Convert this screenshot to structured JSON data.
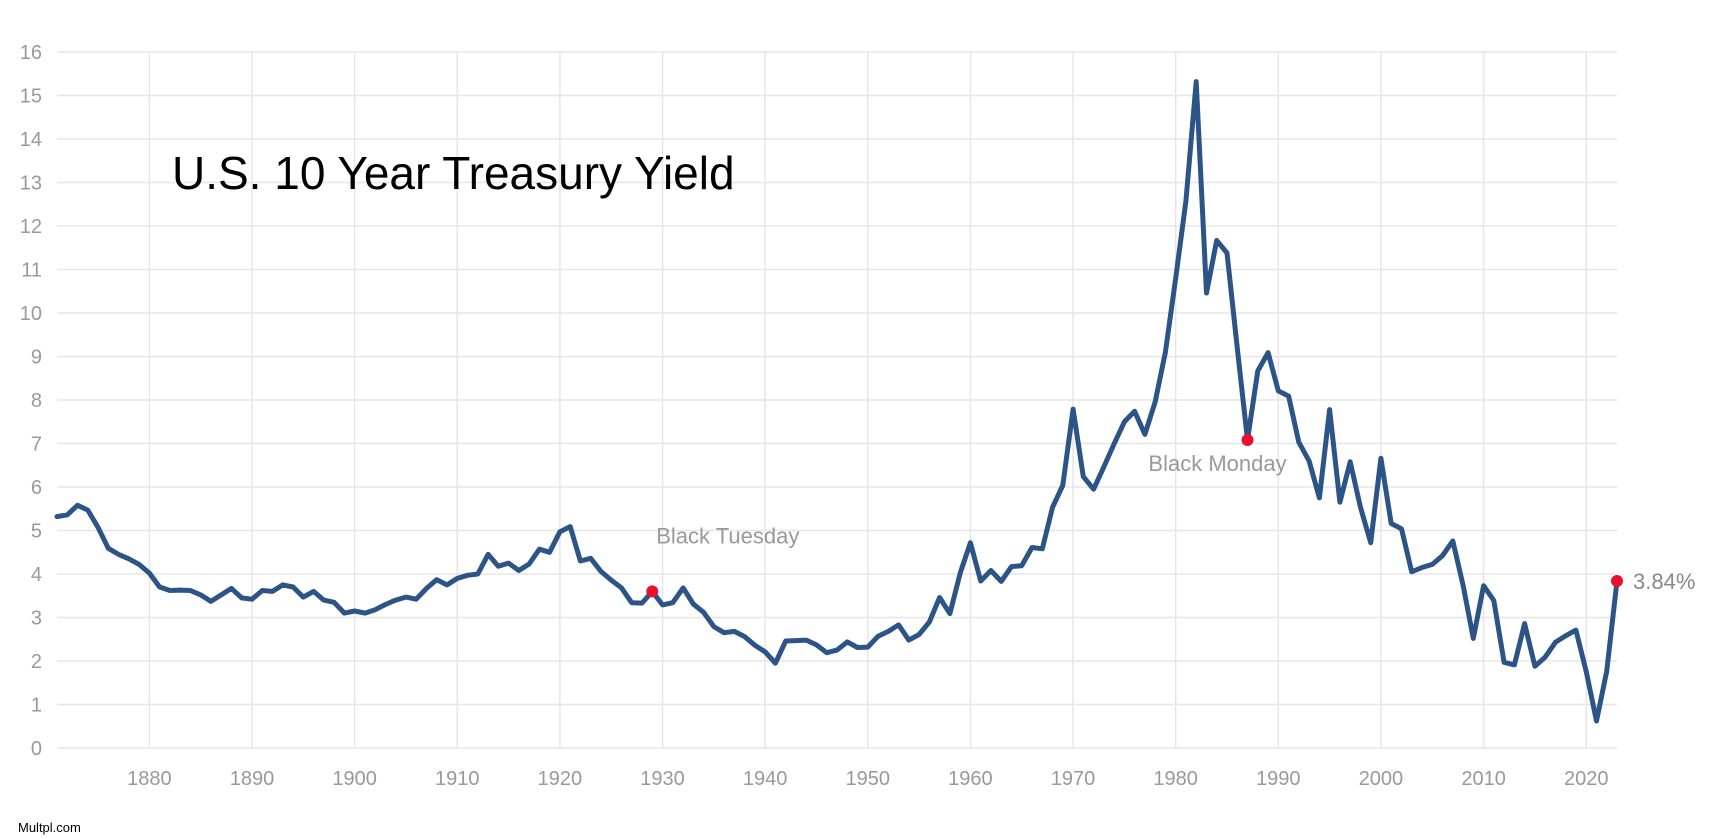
{
  "chart_data": {
    "type": "line",
    "title": "U.S. 10 Year Treasury Yield",
    "xlabel": "",
    "ylabel": "",
    "xlim": [
      1871,
      2023
    ],
    "ylim": [
      0,
      16
    ],
    "x_ticks": [
      1880,
      1890,
      1900,
      1910,
      1920,
      1930,
      1940,
      1950,
      1960,
      1970,
      1980,
      1990,
      2000,
      2010,
      2020
    ],
    "y_ticks": [
      0,
      1,
      2,
      3,
      4,
      5,
      6,
      7,
      8,
      9,
      10,
      11,
      12,
      13,
      14,
      15,
      16
    ],
    "grid": true,
    "line_color": "#2d5487",
    "marker_color": "#e8102e",
    "series": [
      {
        "name": "",
        "x": [
          1871,
          1872,
          1873,
          1874,
          1875,
          1876,
          1877,
          1878,
          1879,
          1880,
          1881,
          1882,
          1883,
          1884,
          1885,
          1886,
          1887,
          1888,
          1889,
          1890,
          1891,
          1892,
          1893,
          1894,
          1895,
          1896,
          1897,
          1898,
          1899,
          1900,
          1901,
          1902,
          1903,
          1904,
          1905,
          1906,
          1907,
          1908,
          1909,
          1910,
          1911,
          1912,
          1913,
          1914,
          1915,
          1916,
          1917,
          1918,
          1919,
          1920,
          1921,
          1922,
          1923,
          1924,
          1925,
          1926,
          1927,
          1928,
          1929,
          1930,
          1931,
          1932,
          1933,
          1934,
          1935,
          1936,
          1937,
          1938,
          1939,
          1940,
          1941,
          1942,
          1943,
          1944,
          1945,
          1946,
          1947,
          1948,
          1949,
          1950,
          1951,
          1952,
          1953,
          1954,
          1955,
          1956,
          1957,
          1958,
          1959,
          1960,
          1961,
          1962,
          1963,
          1964,
          1965,
          1966,
          1967,
          1968,
          1969,
          1970,
          1971,
          1972,
          1973,
          1974,
          1975,
          1976,
          1977,
          1978,
          1979,
          1980,
          1981,
          1982,
          1983,
          1984,
          1985,
          1986,
          1987,
          1988,
          1989,
          1990,
          1991,
          1992,
          1993,
          1994,
          1995,
          1996,
          1997,
          1998,
          1999,
          2000,
          2001,
          2002,
          2003,
          2004,
          2005,
          2006,
          2007,
          2008,
          2009,
          2010,
          2011,
          2012,
          2013,
          2014,
          2015,
          2016,
          2017,
          2018,
          2019,
          2020,
          2021,
          2022,
          2023
        ],
        "y": [
          5.32,
          5.36,
          5.58,
          5.47,
          5.07,
          4.59,
          4.45,
          4.35,
          4.22,
          4.02,
          3.7,
          3.62,
          3.63,
          3.62,
          3.52,
          3.37,
          3.52,
          3.67,
          3.45,
          3.42,
          3.62,
          3.6,
          3.75,
          3.7,
          3.47,
          3.6,
          3.4,
          3.35,
          3.1,
          3.15,
          3.1,
          3.18,
          3.3,
          3.4,
          3.47,
          3.42,
          3.67,
          3.87,
          3.75,
          3.9,
          3.97,
          4.0,
          4.45,
          4.18,
          4.25,
          4.08,
          4.23,
          4.57,
          4.5,
          4.97,
          5.09,
          4.3,
          4.36,
          4.06,
          3.86,
          3.68,
          3.34,
          3.33,
          3.6,
          3.29,
          3.34,
          3.68,
          3.31,
          3.12,
          2.79,
          2.65,
          2.68,
          2.56,
          2.36,
          2.21,
          1.95,
          2.46,
          2.47,
          2.48,
          2.37,
          2.19,
          2.25,
          2.44,
          2.31,
          2.32,
          2.57,
          2.68,
          2.83,
          2.48,
          2.61,
          2.9,
          3.46,
          3.09,
          4.02,
          4.72,
          3.84,
          4.08,
          3.83,
          4.17,
          4.19,
          4.61,
          4.58,
          5.53,
          6.04,
          7.79,
          6.24,
          5.95,
          6.46,
          6.99,
          7.5,
          7.74,
          7.21,
          7.96,
          9.1,
          10.8,
          12.57,
          15.32,
          10.46,
          11.67,
          11.38,
          9.19,
          7.08,
          8.67,
          9.09,
          8.21,
          8.09,
          7.03,
          6.6,
          5.75,
          7.78,
          5.65,
          6.58,
          5.54,
          4.72,
          6.66,
          5.16,
          5.04,
          4.05,
          4.15,
          4.22,
          4.42,
          4.76,
          3.74,
          2.52,
          3.73,
          3.39,
          1.97,
          1.91,
          2.86,
          1.88,
          2.09,
          2.43,
          2.58,
          2.71,
          1.76,
          0.62,
          1.76,
          3.84
        ]
      }
    ],
    "annotations": [
      {
        "x": 1929,
        "y": 3.6,
        "label": "Black Tuesday"
      },
      {
        "x": 1987,
        "y": 7.08,
        "label": "Black Monday"
      }
    ],
    "last_value": {
      "x": 2023,
      "y": 3.84,
      "label": "3.84%"
    }
  },
  "footer": {
    "source": "Multpl.com"
  }
}
